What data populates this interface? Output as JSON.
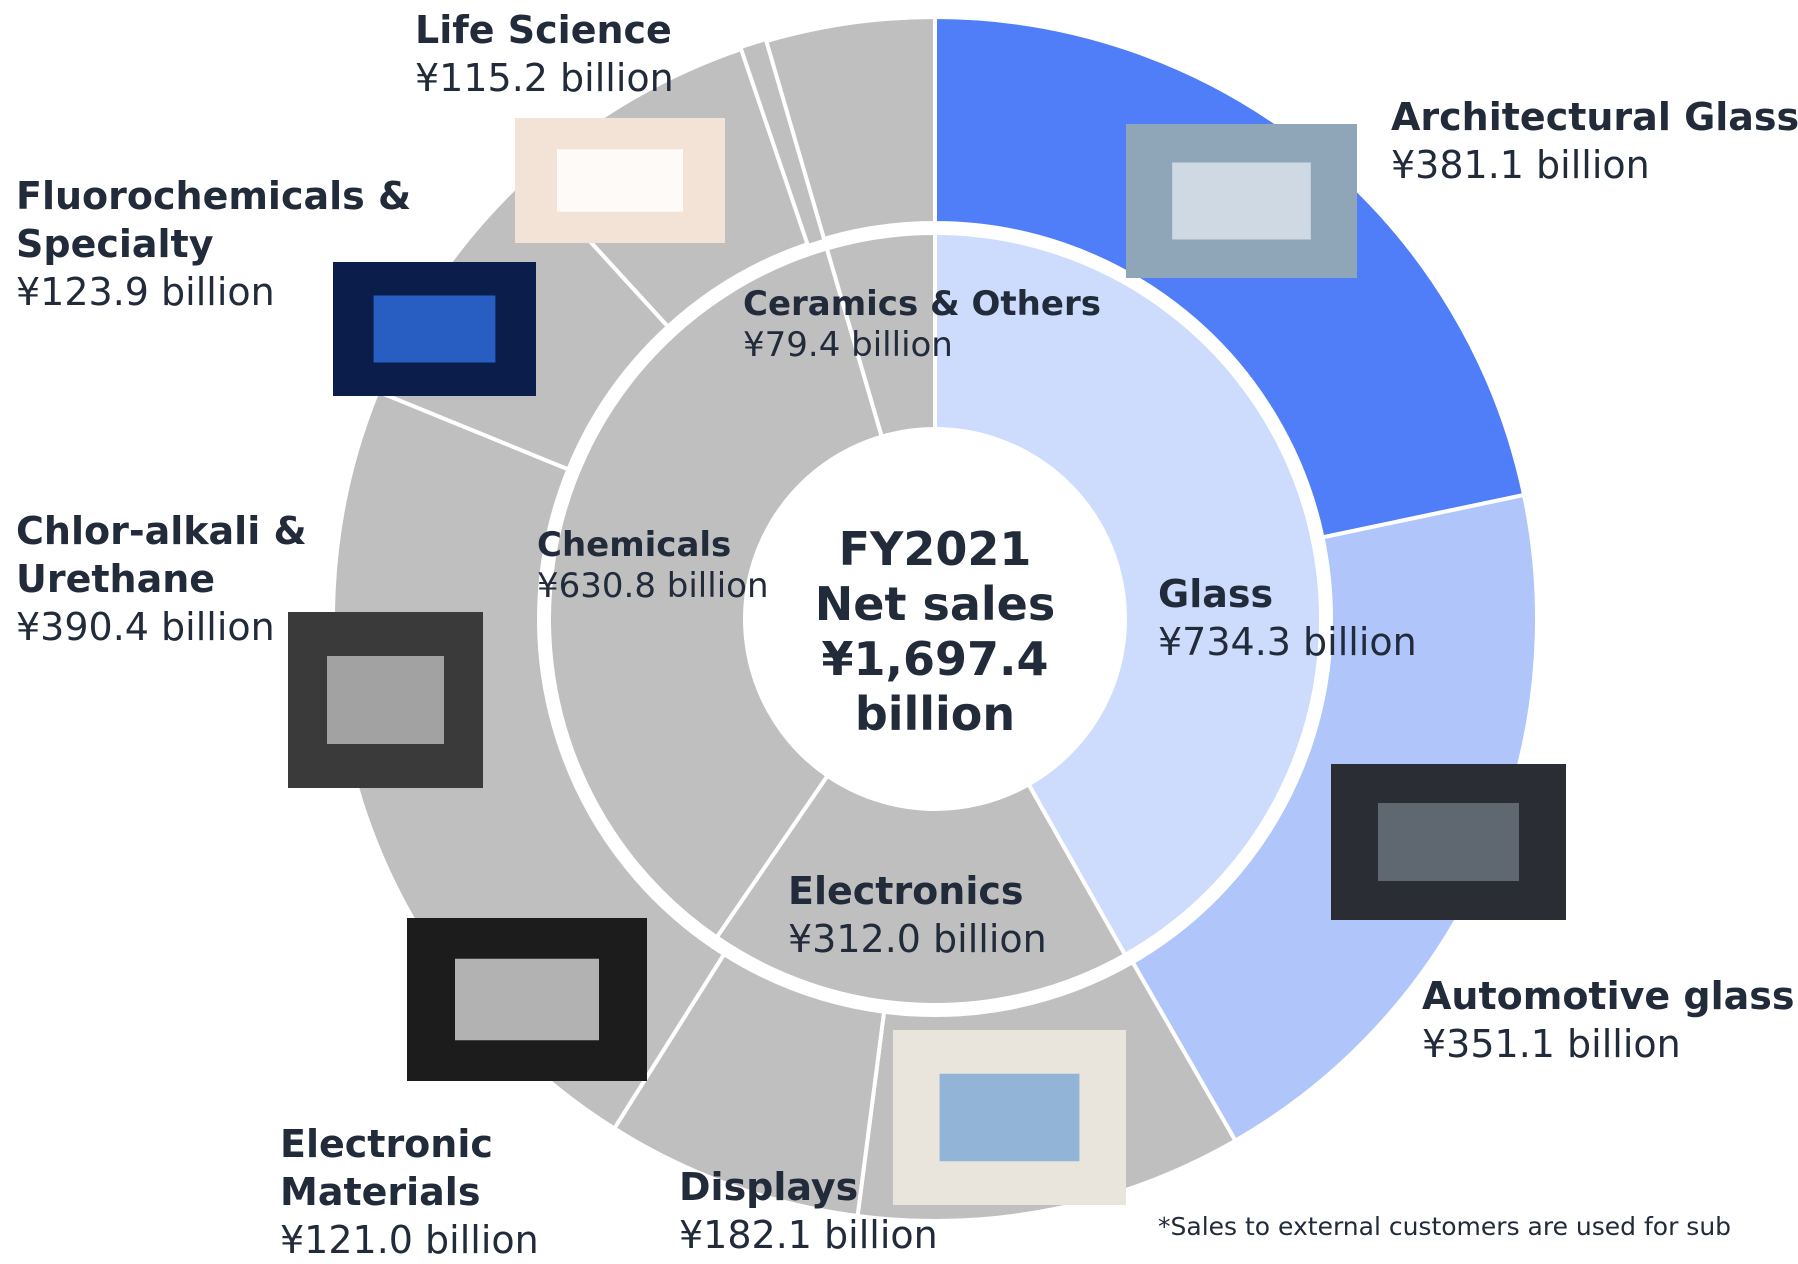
{
  "chart_data": {
    "type": "donut",
    "center_title": [
      "FY2021",
      "Net sales",
      "¥1,697.4 billion"
    ],
    "inner": {
      "categories": [
        "Glass",
        "Electronics",
        "Chemicals",
        "Ceramics & Others"
      ],
      "values": [
        734.3,
        312.0,
        630.8,
        79.4
      ],
      "value_labels": [
        "¥734.3 billion",
        "¥312.0 billion",
        "¥630.8 billion",
        "¥79.4 billion"
      ],
      "colors": [
        "#cddcfc",
        "#bfbfbf",
        "#bfbfbf",
        "#bfbfbf"
      ]
    },
    "outer": {
      "categories": [
        "Architectural Glass",
        "Automotive glass",
        "Displays",
        "Electronic Materials",
        "Chlor-alkali & Urethane",
        "Fluorochemicals & Specialty",
        "Life Science"
      ],
      "values": [
        381.1,
        351.1,
        182.1,
        121.0,
        390.4,
        123.9,
        115.2
      ],
      "value_labels": [
        "¥381.1 billion",
        "¥351.1 billion",
        "¥182.1 billion",
        "¥121.0 billion",
        "¥390.4 billion",
        "¥123.9 billion",
        "¥115.2 billion"
      ],
      "colors": [
        "#4f7ef8",
        "#b0c6fb",
        "#bfbfbf",
        "#bfbfbf",
        "#bfbfbf",
        "#bfbfbf",
        "#bfbfbf"
      ]
    },
    "footnote": "*Sales to external customers are used for sub"
  }
}
